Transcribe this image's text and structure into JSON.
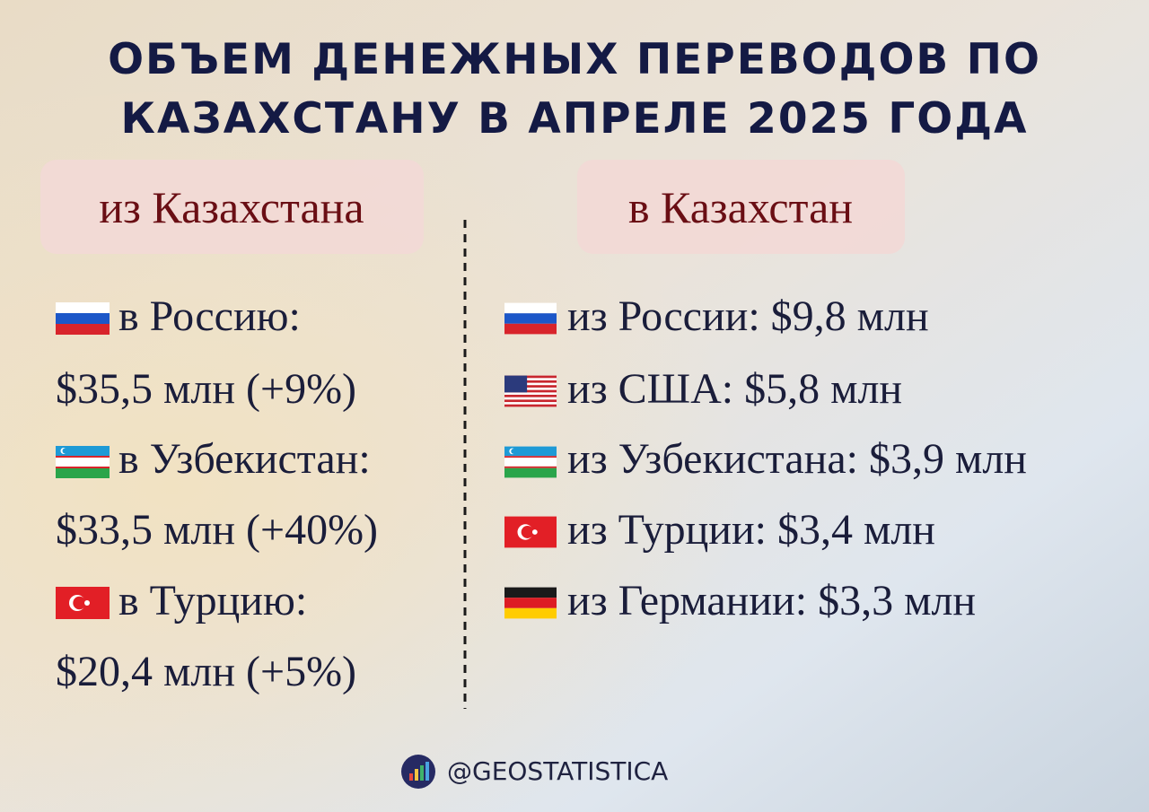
{
  "title": {
    "lines": [
      "ОБЪЕМ ДЕНЕЖНЫХ ПЕРЕВОДОВ ПО",
      "КАЗАХСТАНУ В АПРЕЛЕ 2025 ГОДА"
    ]
  },
  "columns": [
    {
      "header": "из Казахстана",
      "items": [
        {
          "label": "в Россию:",
          "value": "$35,5 млн (+9%)"
        },
        {
          "label": "в Узбекистан:",
          "value": "$33,5 млн (+40%)"
        },
        {
          "label": "в Турцию:",
          "value": "$20,4 млн (+5%)"
        }
      ]
    },
    {
      "header": "в Казахстан",
      "items": [
        {
          "text": "из России: $9,8 млн"
        },
        {
          "text": "из США: $5,8 млн"
        },
        {
          "text": "из Узбекистана: $3,9 млн"
        },
        {
          "text": "из Турции: $3,4 млн"
        },
        {
          "text": "из Германии: $3,3 млн"
        }
      ]
    }
  ],
  "footer": {
    "handle": "@GEOSTATISTICA"
  }
}
